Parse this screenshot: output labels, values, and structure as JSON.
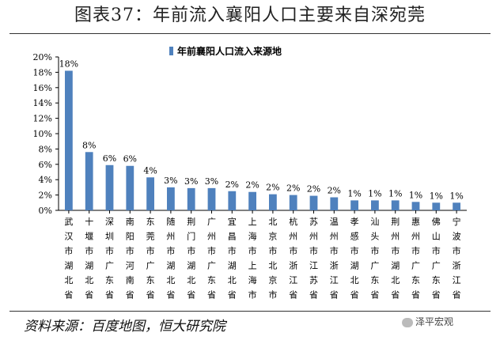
{
  "page": {
    "title": "图表37：年前流入襄阳人口主要来自深宛莞",
    "source": "资料来源：百度地图，恒大研究院",
    "watermark": "泽平宏观"
  },
  "chart_data": {
    "type": "bar",
    "title": "",
    "legend": "年前襄阳人口流入来源地",
    "legend_position": "top",
    "xlabel": "",
    "ylabel": "",
    "ylim": [
      0,
      20
    ],
    "y_ticks": [
      "0%",
      "2%",
      "4%",
      "6%",
      "8%",
      "10%",
      "12%",
      "14%",
      "16%",
      "18%",
      "20%"
    ],
    "bar_color": "#4f81bd",
    "categories": [
      "武汉市湖北省",
      "十堰市湖北省",
      "深圳市广东省",
      "南阳市河南省",
      "东莞市广东省",
      "随州市湖北省",
      "荆门市湖北省",
      "广州市广东省",
      "宜昌市湖北省",
      "上海市上海市",
      "北京市北京市",
      "杭州市浙江省",
      "苏州市江苏省",
      "温州市浙江省",
      "孝感市湖北省",
      "汕头市广东省",
      "荆州市湖北省",
      "惠州市广东省",
      "佛山市广东省",
      "宁波市浙江省"
    ],
    "values": [
      18.2,
      7.6,
      5.9,
      5.8,
      4.3,
      3.0,
      2.9,
      2.9,
      2.5,
      2.4,
      2.1,
      2.0,
      1.9,
      1.7,
      1.3,
      1.3,
      1.3,
      1.1,
      1.0,
      1.0
    ],
    "data_labels": [
      "18%",
      "8%",
      "6%",
      "6%",
      "4%",
      "3%",
      "3%",
      "3%",
      "2%",
      "2%",
      "2%",
      "2%",
      "2%",
      "2%",
      "1%",
      "1%",
      "1%",
      "1%",
      "1%",
      "1%"
    ]
  }
}
